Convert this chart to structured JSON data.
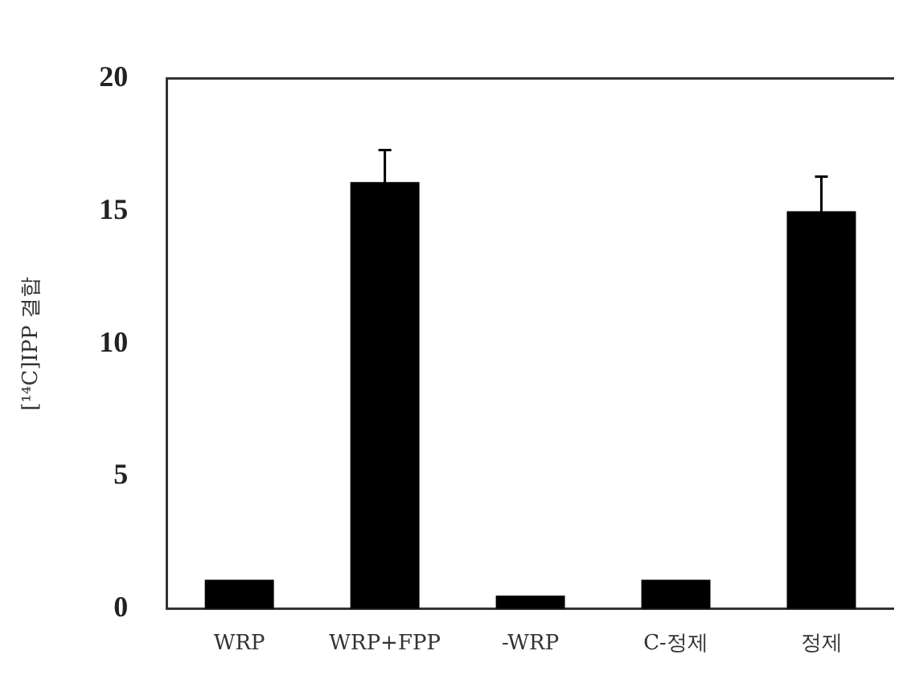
{
  "chart_data": {
    "type": "bar",
    "ylabel": "[¹⁴C]IPP 결합",
    "categories": [
      "WRP",
      "WRP+FPP",
      "-WRP",
      "C-정제",
      "정제"
    ],
    "values": [
      1.1,
      16.1,
      0.5,
      1.1,
      15.0
    ],
    "errors": [
      null,
      1.2,
      null,
      null,
      1.3
    ],
    "color": "#000000",
    "ylim": [
      0,
      20
    ],
    "yticks": [
      0,
      5,
      10,
      15,
      20
    ],
    "grid": false,
    "legend": false
  }
}
